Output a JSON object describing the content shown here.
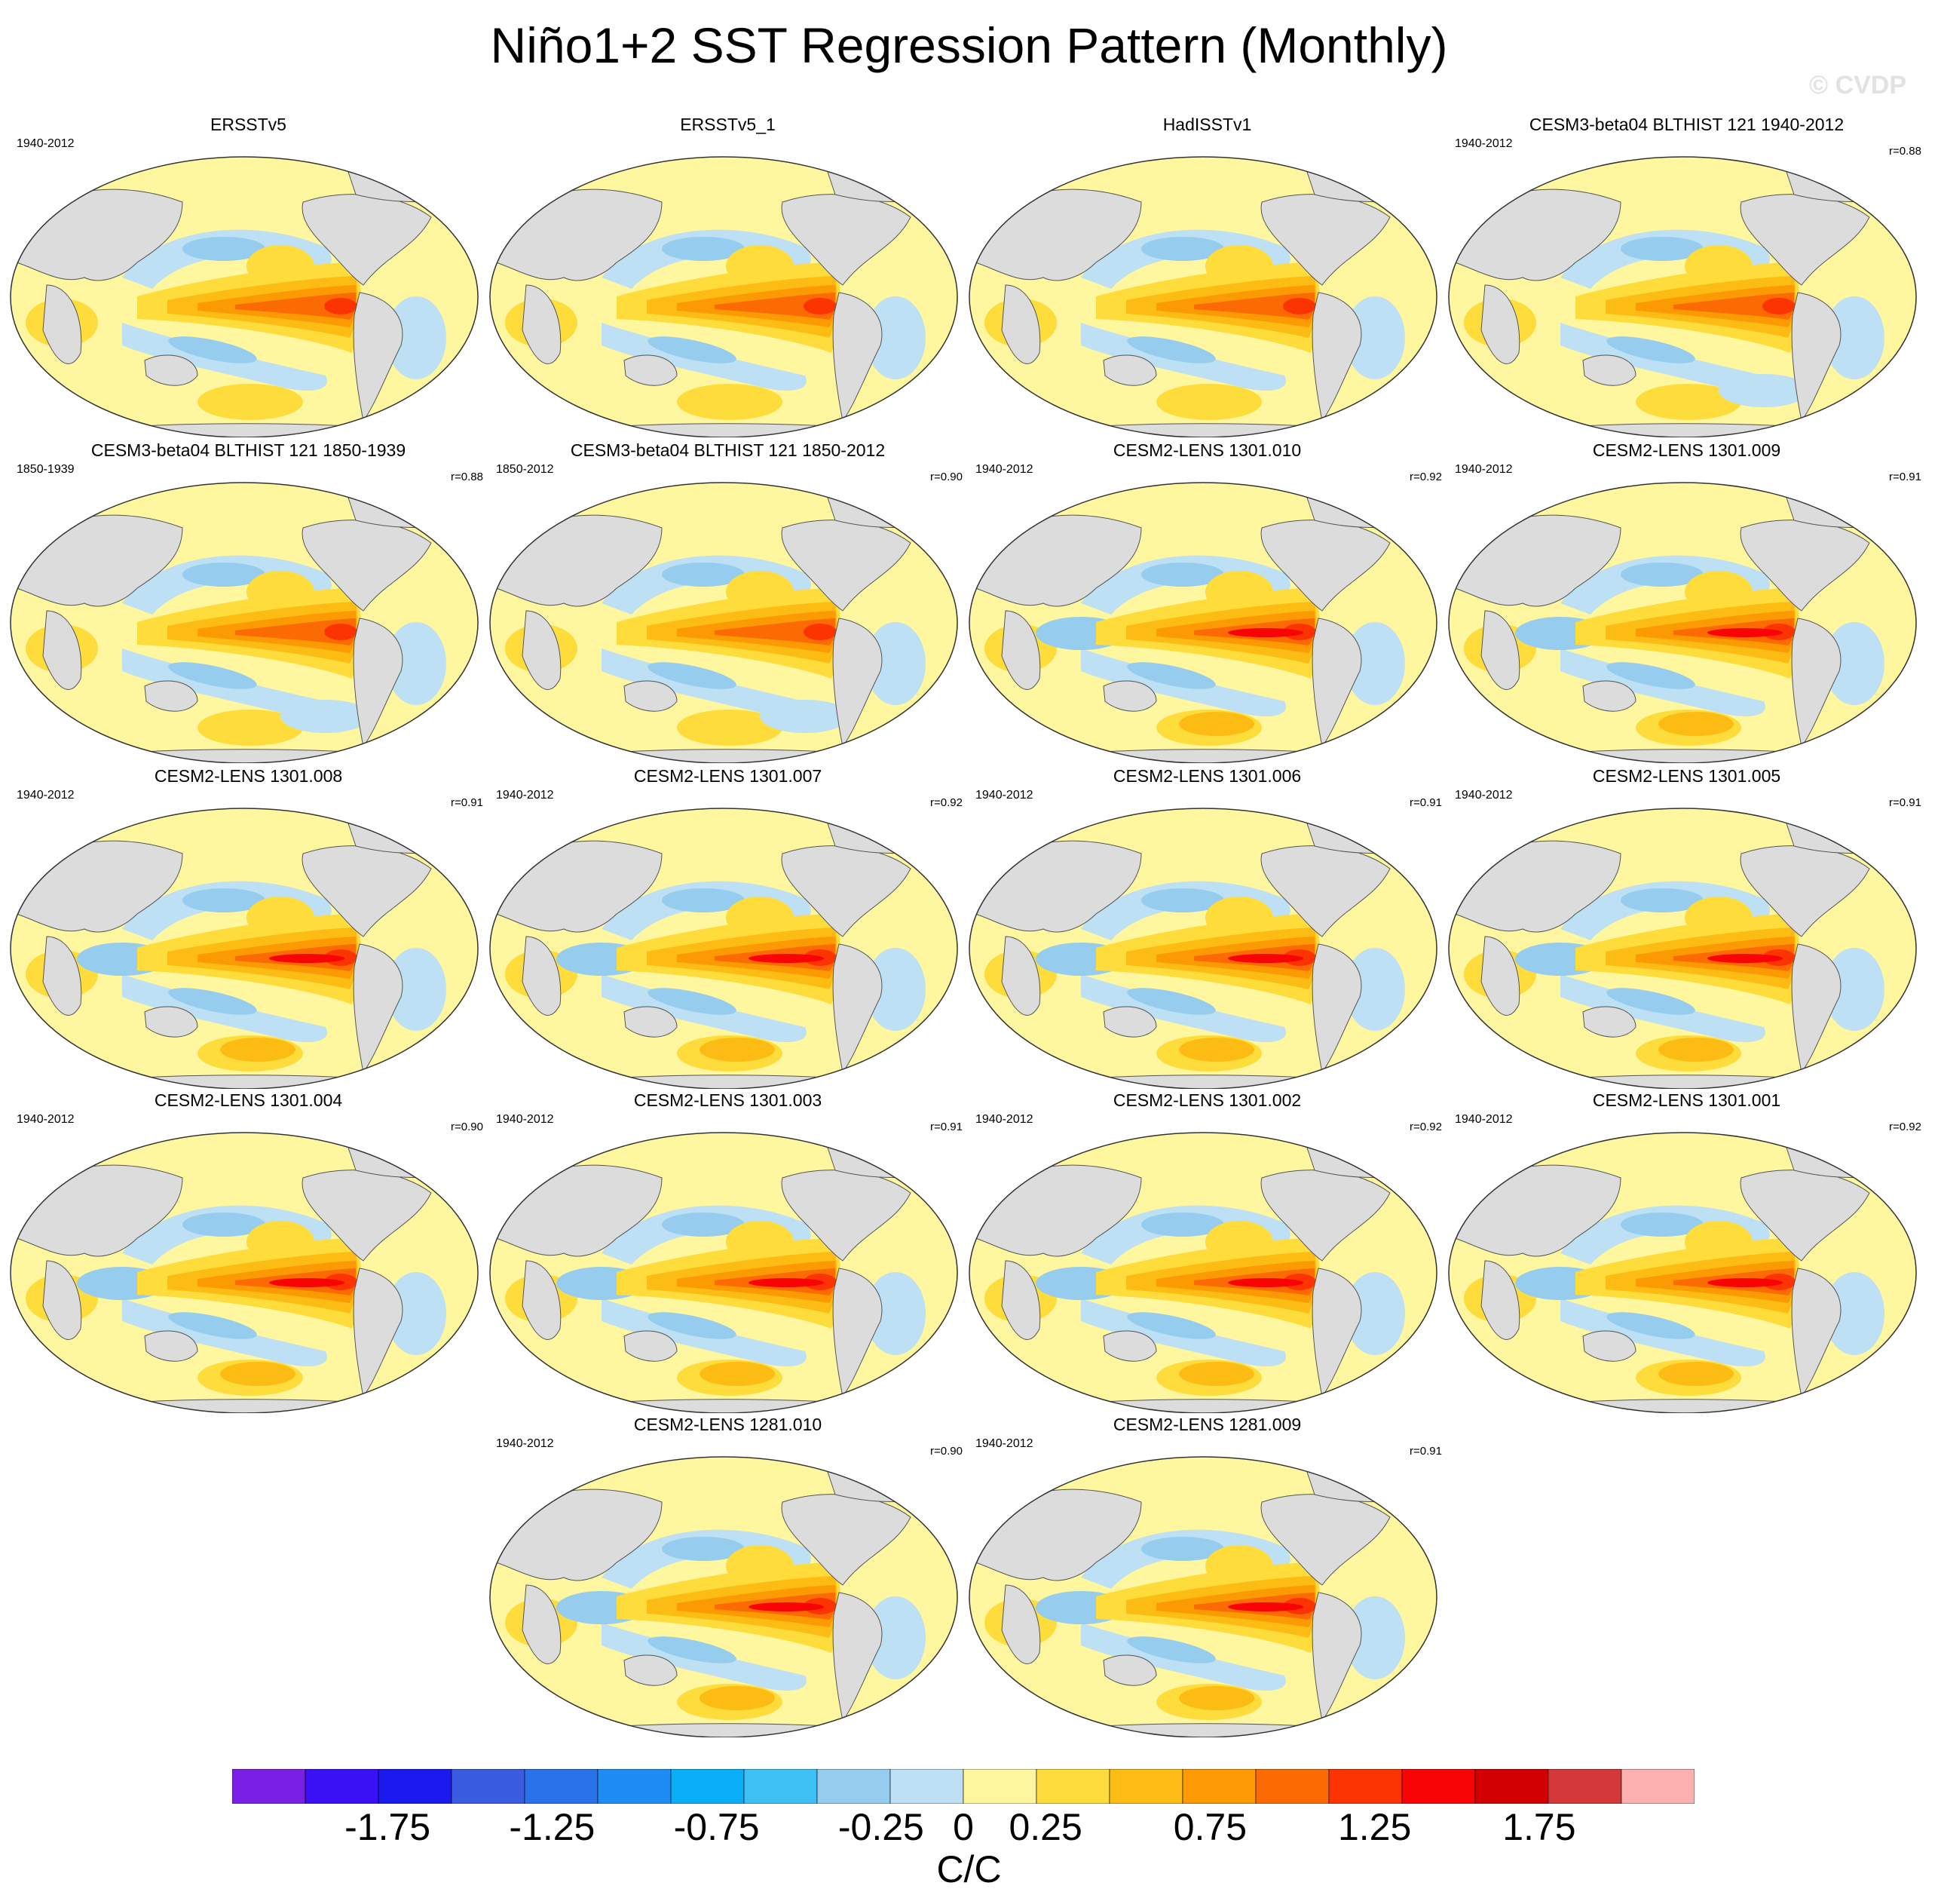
{
  "title": "Niño1+2 SST Regression Pattern (Monthly)",
  "watermark": "© CVDP",
  "chart_data": {
    "type": "heatmap",
    "variable": "SST regression onto Niño1+2 index (Monthly)",
    "units": "C/C",
    "colorbar": {
      "levels": [
        -2.0,
        -1.75,
        -1.5,
        -1.25,
        -1.0,
        -0.75,
        -0.5,
        -0.25,
        0,
        0.25,
        0.5,
        0.75,
        1.0,
        1.25,
        1.5,
        1.75,
        2.0
      ],
      "tick_labels": [
        "-1.75",
        "-1.25",
        "-0.75",
        "-0.25",
        "0",
        "0.25",
        "0.75",
        "1.25",
        "1.75"
      ],
      "tick_values": [
        -1.75,
        -1.25,
        -0.75,
        -0.25,
        0,
        0.25,
        0.75,
        1.25,
        1.75
      ],
      "colors": [
        "#7a1fe6",
        "#3a10f4",
        "#1a1aee",
        "#3a5ce0",
        "#2a72ea",
        "#1e8cf2",
        "#0aaef6",
        "#3ec0f4",
        "#96cdee",
        "#bde0f4",
        "#fff6a0",
        "#fedc3c",
        "#fdbc14",
        "#fc9a04",
        "#fc6a04",
        "#fc3402",
        "#f80404",
        "#d20000",
        "#d43838",
        "#fdb0b0"
      ]
    },
    "panels": [
      {
        "name": "ERSSTv5",
        "period": "1940-2012",
        "r": "",
        "style": "obs"
      },
      {
        "name": "ERSSTv5_1",
        "period": "",
        "r": "",
        "style": "obs"
      },
      {
        "name": "HadISSTv1",
        "period": "",
        "r": "",
        "style": "obs"
      },
      {
        "name": "CESM3-beta04 BLTHIST 121 1940-2012",
        "period": "1940-2012",
        "r": "r=0.88",
        "style": "model_weak"
      },
      {
        "name": "CESM3-beta04 BLTHIST 121 1850-1939",
        "period": "1850-1939",
        "r": "r=0.88",
        "style": "model_weak"
      },
      {
        "name": "CESM3-beta04 BLTHIST 121 1850-2012",
        "period": "1850-2012",
        "r": "r=0.90",
        "style": "model_weak"
      },
      {
        "name": "CESM2-LENS 1301.010",
        "period": "1940-2012",
        "r": "r=0.92",
        "style": "model"
      },
      {
        "name": "CESM2-LENS 1301.009",
        "period": "1940-2012",
        "r": "r=0.91",
        "style": "model"
      },
      {
        "name": "CESM2-LENS 1301.008",
        "period": "1940-2012",
        "r": "r=0.91",
        "style": "model"
      },
      {
        "name": "CESM2-LENS 1301.007",
        "period": "1940-2012",
        "r": "r=0.92",
        "style": "model"
      },
      {
        "name": "CESM2-LENS 1301.006",
        "period": "1940-2012",
        "r": "r=0.91",
        "style": "model"
      },
      {
        "name": "CESM2-LENS 1301.005",
        "period": "1940-2012",
        "r": "r=0.91",
        "style": "model"
      },
      {
        "name": "CESM2-LENS 1301.004",
        "period": "1940-2012",
        "r": "r=0.90",
        "style": "model"
      },
      {
        "name": "CESM2-LENS 1301.003",
        "period": "1940-2012",
        "r": "r=0.91",
        "style": "model"
      },
      {
        "name": "CESM2-LENS 1301.002",
        "period": "1940-2012",
        "r": "r=0.92",
        "style": "model"
      },
      {
        "name": "CESM2-LENS 1301.001",
        "period": "1940-2012",
        "r": "r=0.92",
        "style": "model"
      },
      {
        "name": "CESM2-LENS 1281.010",
        "period": "1940-2012",
        "r": "r=0.90",
        "style": "model"
      },
      {
        "name": "CESM2-LENS 1281.009",
        "period": "1940-2012",
        "r": "r=0.91",
        "style": "model"
      }
    ]
  }
}
